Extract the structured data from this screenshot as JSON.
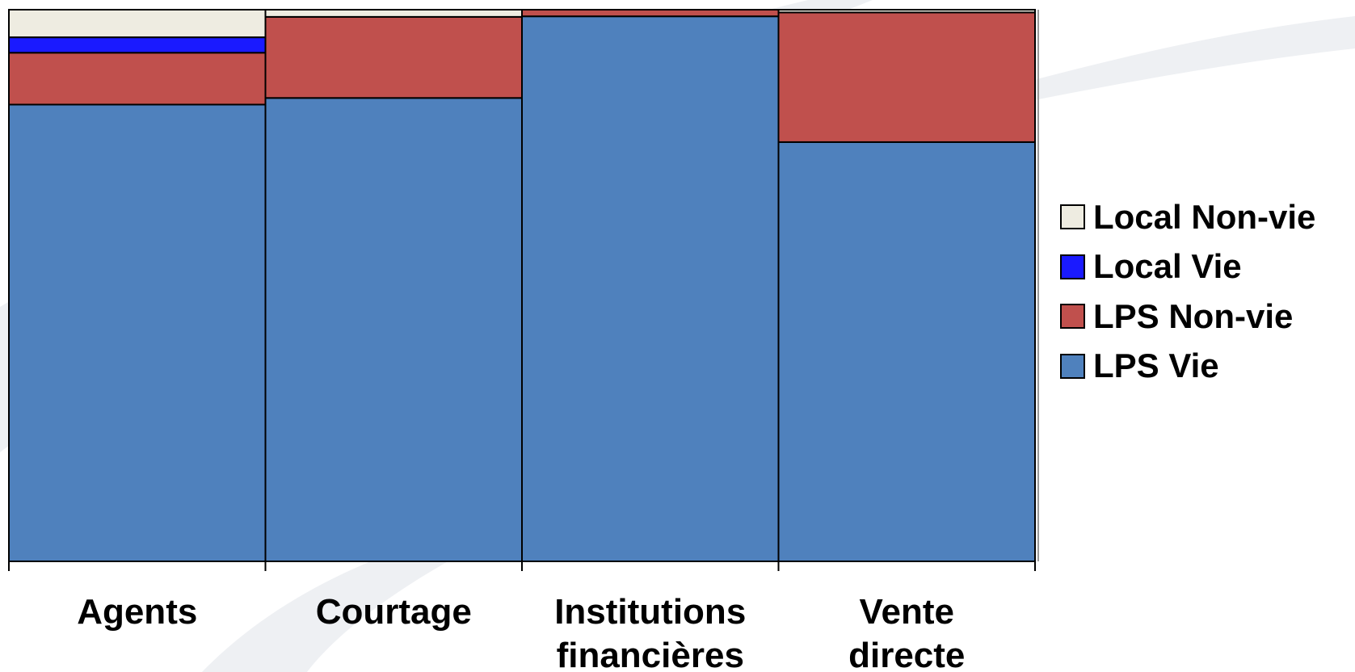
{
  "chart_data": {
    "type": "bar",
    "stacked": true,
    "normalized": true,
    "title": "",
    "xlabel": "",
    "ylabel": "",
    "ylim": [
      0,
      100
    ],
    "grid": false,
    "legend_position": "right",
    "categories": [
      [
        "Agents"
      ],
      [
        "Courtage"
      ],
      [
        "Institutions",
        "financières"
      ],
      [
        "Vente",
        "directe"
      ]
    ],
    "series": [
      {
        "name": "LPS Vie",
        "color": "#4F81BD",
        "values": [
          82.8,
          84.0,
          98.8,
          76.0
        ]
      },
      {
        "name": "LPS Non-vie",
        "color": "#C0504D",
        "values": [
          9.4,
          14.7,
          1.2,
          23.5
        ]
      },
      {
        "name": "Local Vie",
        "color": "#1A1AFF",
        "values": [
          2.8,
          0,
          0,
          0
        ]
      },
      {
        "name": "Local Non-vie",
        "color": "#EEECE1",
        "values": [
          5.0,
          1.3,
          0,
          0.5
        ]
      }
    ]
  },
  "legend": {
    "items": [
      {
        "label": "Local Non-vie",
        "color": "#EEECE1"
      },
      {
        "label": "Local Vie",
        "color": "#1A1AFF"
      },
      {
        "label": "LPS Non-vie",
        "color": "#C0504D"
      },
      {
        "label": "LPS Vie",
        "color": "#4F81BD"
      }
    ]
  }
}
